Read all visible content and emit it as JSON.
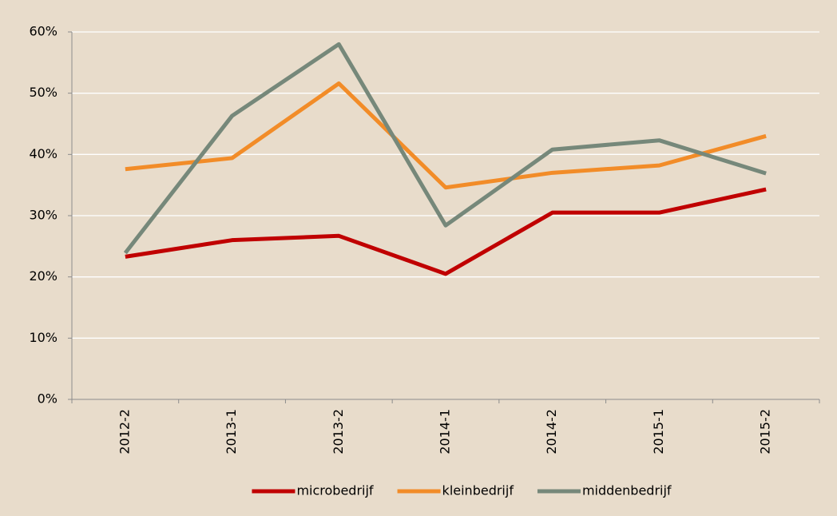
{
  "chart_data": {
    "type": "line",
    "categories": [
      "2012-2",
      "2013-1",
      "2013-2",
      "2014-1",
      "2014-2",
      "2015-1",
      "2015-2"
    ],
    "series": [
      {
        "name": "microbedrijf",
        "color": "#c00000",
        "values": [
          23.3,
          26.0,
          26.7,
          20.5,
          30.5,
          30.5,
          34.3
        ]
      },
      {
        "name": "kleinbedrijf",
        "color": "#f28c28",
        "values": [
          37.6,
          39.4,
          51.6,
          34.6,
          37.0,
          38.2,
          43.0
        ]
      },
      {
        "name": "middenbedrijf",
        "color": "#76887a",
        "values": [
          23.9,
          46.3,
          58.0,
          28.4,
          40.8,
          42.3,
          36.9
        ]
      }
    ],
    "ylim": [
      0,
      60
    ],
    "yticks": [
      {
        "value": 0,
        "label": "0%"
      },
      {
        "value": 10,
        "label": "10%"
      },
      {
        "value": 20,
        "label": "20%"
      },
      {
        "value": 30,
        "label": "30%"
      },
      {
        "value": 40,
        "label": "40%"
      },
      {
        "value": 50,
        "label": "50%"
      },
      {
        "value": 60,
        "label": "60%"
      }
    ],
    "grid": true,
    "legend": "bottom"
  }
}
